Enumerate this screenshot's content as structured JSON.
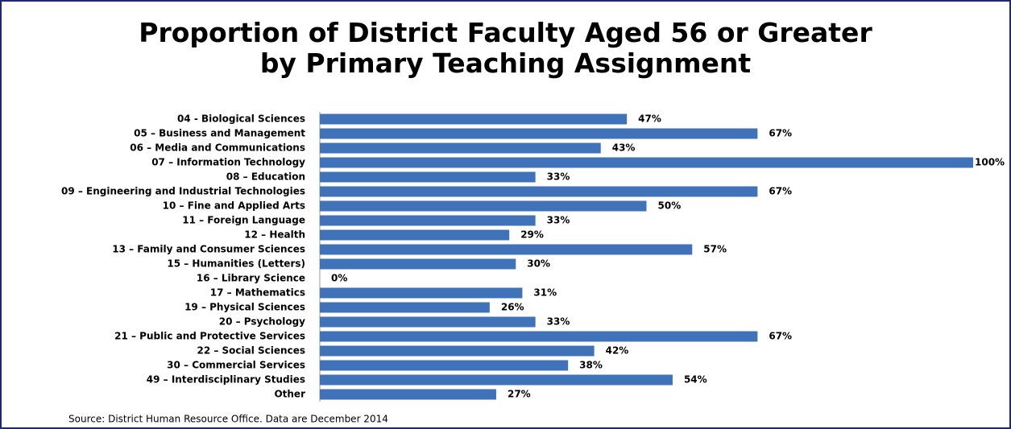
{
  "chart_data": {
    "type": "bar",
    "orientation": "horizontal",
    "title": "Proportion of District Faculty Aged 56 or Greater by Primary Teaching Assignment",
    "categories": [
      "04 - Biological Sciences",
      "05 – Business and Management",
      "06 – Media and Communications",
      "07 – Information Technology",
      "08 – Education",
      "09 – Engineering and Industrial Technologies",
      "10 – Fine and Applied Arts",
      "11 – Foreign Language",
      "12 – Health",
      "13 – Family and Consumer Sciences",
      "15 – Humanities (Letters)",
      "16 – Library Science",
      "17 – Mathematics",
      "19 – Physical Sciences",
      "20 – Psychology",
      "21 – Public and Protective Services",
      "22 – Social Sciences",
      "30 – Commercial Services",
      "49 – Interdisciplinary Studies",
      "Other"
    ],
    "values": [
      47,
      67,
      43,
      100,
      33,
      67,
      50,
      33,
      29,
      57,
      30,
      0,
      31,
      26,
      33,
      67,
      42,
      38,
      54,
      27
    ],
    "value_labels": [
      "47%",
      "67%",
      "43%",
      "100%",
      "33%",
      "67%",
      "50%",
      "33%",
      "29%",
      "57%",
      "30%",
      "0%",
      "31%",
      "26%",
      "33%",
      "67%",
      "42%",
      "38%",
      "54%",
      "27%"
    ],
    "color": "#3f72b8",
    "source": "Source:  District Human Resource Office.  Data are December 2014"
  }
}
